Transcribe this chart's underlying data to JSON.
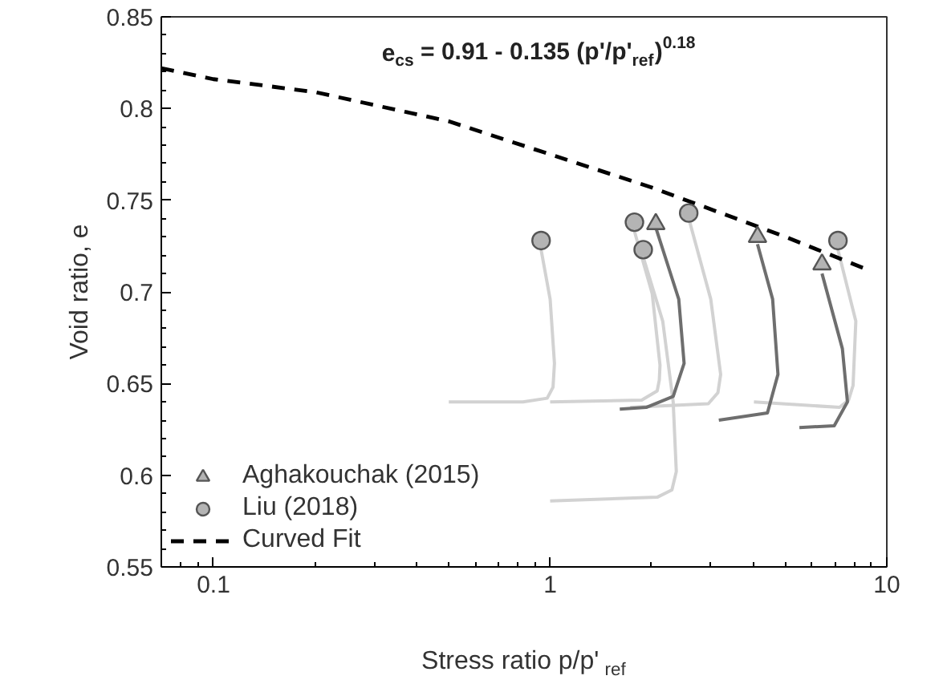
{
  "chart_data": {
    "type": "line",
    "xlabel": "Stress ratio p/p'$_{ref}$",
    "ylabel": "Void ratio, e",
    "annotations": [
      "e$_{cs}$ = 0.91 - 0.135 (p'/p'$_{ref}$)$^{0.18}$"
    ],
    "log": "x",
    "legend": "bottom left",
    "xlim": [
      0.07,
      10
    ],
    "ylim": [
      0.55,
      0.85
    ],
    "xticks": [
      0.1,
      1,
      10
    ],
    "yticks": [
      0.55,
      0.6,
      0.65,
      0.7,
      0.75,
      0.8,
      0.85
    ],
    "series": [
      {
        "color": "#d2d2d2",
        "x": [
          0.94,
          1.0,
          1.03,
          1.02,
          0.98,
          0.83,
          0.5
        ],
        "values": [
          0.723,
          0.696,
          0.661,
          0.648,
          0.642,
          0.64,
          0.64
        ]
      },
      {
        "color": "#d2d2d2",
        "x": [
          1.78,
          2.01,
          2.12,
          2.11,
          2.08,
          1.87,
          1.0
        ],
        "values": [
          0.733,
          0.699,
          0.66,
          0.652,
          0.646,
          0.641,
          0.64
        ]
      },
      {
        "color": "#d2d2d2",
        "x": [
          1.89,
          2.16,
          2.32,
          2.37,
          2.3,
          2.08,
          1.0
        ],
        "values": [
          0.719,
          0.684,
          0.64,
          0.602,
          0.592,
          0.588,
          0.586
        ]
      },
      {
        "color": "#d2d2d2",
        "x": [
          2.59,
          3.0,
          3.21,
          3.15,
          2.95,
          1.73
        ],
        "values": [
          0.739,
          0.696,
          0.655,
          0.645,
          0.639,
          0.637
        ]
      },
      {
        "color": "#d2d2d2",
        "x": [
          7.16,
          8.09,
          7.94,
          7.7,
          7.24,
          4.03
        ],
        "values": [
          0.723,
          0.684,
          0.649,
          0.641,
          0.637,
          0.64
        ]
      },
      {
        "color": "#6e6e6e",
        "x": [
          2.06,
          2.41,
          2.5,
          2.32,
          1.93,
          1.61
        ],
        "values": [
          0.735,
          0.696,
          0.661,
          0.643,
          0.637,
          0.636
        ]
      },
      {
        "color": "#6e6e6e",
        "x": [
          4.13,
          4.58,
          4.75,
          4.42,
          3.17
        ],
        "values": [
          0.726,
          0.696,
          0.655,
          0.634,
          0.63
        ]
      },
      {
        "color": "#6e6e6e",
        "x": [
          6.42,
          7.38,
          7.64,
          6.98,
          5.5
        ],
        "values": [
          0.71,
          0.669,
          0.64,
          0.627,
          0.626
        ]
      },
      {
        "name": "Curved Fit",
        "color": "#000000",
        "line_style": "dashed",
        "x": [
          0.07,
          0.1,
          0.2,
          0.5,
          1,
          2,
          5,
          8.8
        ],
        "values": [
          0.822,
          0.816,
          0.809,
          0.793,
          0.775,
          0.757,
          0.73,
          0.712
        ]
      },
      {
        "type": "scatter",
        "name": "Aghakouchak (2015)",
        "marker": "triangle",
        "color": "#b4b4b4",
        "x": [
          2.06,
          4.13,
          6.42
        ],
        "values": [
          0.737,
          0.73,
          0.715
        ]
      },
      {
        "type": "scatter",
        "name": "Liu (2018)",
        "marker": "circle",
        "color": "#b4b4b4",
        "x": [
          0.94,
          1.78,
          1.89,
          2.58,
          7.16
        ],
        "values": [
          0.728,
          0.738,
          0.723,
          0.743,
          0.728
        ]
      }
    ]
  }
}
